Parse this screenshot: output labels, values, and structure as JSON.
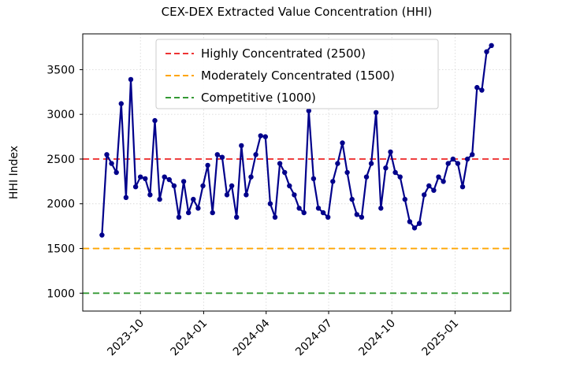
{
  "chart_data": {
    "type": "line",
    "title": "CEX-DEX Extracted Value Concentration (HHI)",
    "xlabel": "",
    "ylabel": "HHI Index",
    "ylim": [
      800,
      3900
    ],
    "yticks": [
      1000,
      1500,
      2000,
      2500,
      3000,
      3500
    ],
    "xticks": [
      {
        "date": "2023-10-01",
        "label": "2023-10"
      },
      {
        "date": "2024-01-01",
        "label": "2024-01"
      },
      {
        "date": "2024-04-01",
        "label": "2024-04"
      },
      {
        "date": "2024-07-01",
        "label": "2024-07"
      },
      {
        "date": "2024-10-01",
        "label": "2024-10"
      },
      {
        "date": "2025-01-01",
        "label": "2025-01"
      }
    ],
    "grid": true,
    "legend_position": "upper center",
    "line_color": "#00008b",
    "marker": "circle",
    "reference_lines": [
      {
        "value": 2500,
        "label": "Highly Concentrated (2500)",
        "color": "#ee3333"
      },
      {
        "value": 1500,
        "label": "Moderately Concentrated (1500)",
        "color": "#ffa500"
      },
      {
        "value": 1000,
        "label": "Competitive (1000)",
        "color": "#339933"
      }
    ],
    "x": [
      "2023-08-06",
      "2023-08-13",
      "2023-08-20",
      "2023-08-27",
      "2023-09-03",
      "2023-09-10",
      "2023-09-17",
      "2023-09-24",
      "2023-10-01",
      "2023-10-08",
      "2023-10-15",
      "2023-10-22",
      "2023-10-29",
      "2023-11-05",
      "2023-11-12",
      "2023-11-19",
      "2023-11-26",
      "2023-12-03",
      "2023-12-10",
      "2023-12-17",
      "2023-12-24",
      "2023-12-31",
      "2024-01-07",
      "2024-01-14",
      "2024-01-21",
      "2024-01-28",
      "2024-02-04",
      "2024-02-11",
      "2024-02-18",
      "2024-02-25",
      "2024-03-03",
      "2024-03-10",
      "2024-03-17",
      "2024-03-24",
      "2024-03-31",
      "2024-04-07",
      "2024-04-14",
      "2024-04-21",
      "2024-04-28",
      "2024-05-05",
      "2024-05-12",
      "2024-05-19",
      "2024-05-26",
      "2024-06-02",
      "2024-06-09",
      "2024-06-16",
      "2024-06-23",
      "2024-06-30",
      "2024-07-07",
      "2024-07-14",
      "2024-07-21",
      "2024-07-28",
      "2024-08-04",
      "2024-08-11",
      "2024-08-18",
      "2024-08-25",
      "2024-09-01",
      "2024-09-08",
      "2024-09-15",
      "2024-09-22",
      "2024-09-29",
      "2024-10-06",
      "2024-10-13",
      "2024-10-20",
      "2024-10-27",
      "2024-11-03",
      "2024-11-10",
      "2024-11-17",
      "2024-11-24",
      "2024-12-01",
      "2024-12-08",
      "2024-12-15",
      "2024-12-22",
      "2024-12-29",
      "2025-01-05",
      "2025-01-12",
      "2025-01-19",
      "2025-01-26",
      "2025-02-02",
      "2025-02-09",
      "2025-02-16",
      "2025-02-23"
    ],
    "values": [
      1650,
      2550,
      2450,
      2350,
      3120,
      2070,
      3390,
      2190,
      2300,
      2280,
      2100,
      2930,
      2050,
      2300,
      2270,
      2200,
      1850,
      2250,
      1900,
      2050,
      1950,
      2200,
      2430,
      1900,
      2550,
      2520,
      2100,
      2200,
      1850,
      2650,
      2100,
      2300,
      2550,
      2760,
      2750,
      2000,
      1850,
      2450,
      2350,
      2200,
      2100,
      1950,
      1900,
      3040,
      2280,
      1950,
      1900,
      1850,
      2250,
      2450,
      2680,
      2350,
      2050,
      1880,
      1850,
      2300,
      2450,
      3020,
      1950,
      2400,
      2580,
      2350,
      2300,
      2050,
      1800,
      1730,
      1780,
      2100,
      2200,
      2150,
      2300,
      2250,
      2450,
      2500,
      2450,
      2190,
      2500,
      2550,
      3300,
      3270,
      3700,
      3770
    ]
  }
}
